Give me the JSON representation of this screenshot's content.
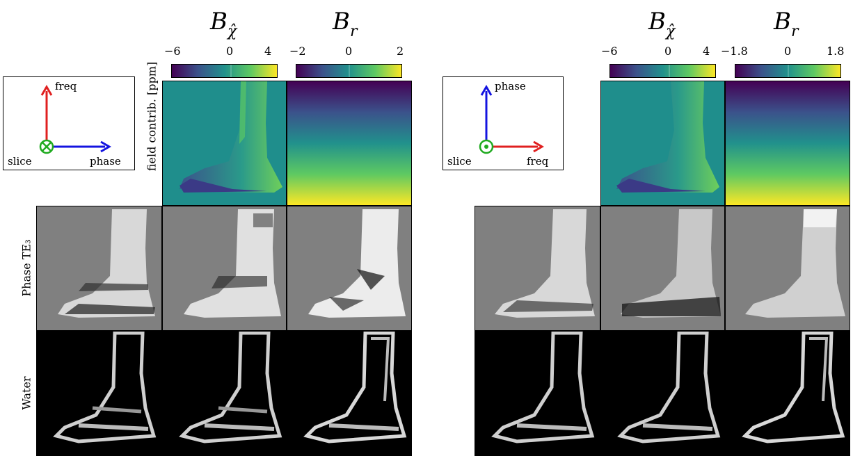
{
  "left": {
    "titles": {
      "chi_main": "B",
      "chi_sub": "χ̂",
      "r_main": "B",
      "r_sub": "r"
    },
    "colorbar_chi": {
      "ticks": [
        "−6",
        "0",
        "4"
      ]
    },
    "colorbar_r": {
      "ticks": [
        "−2",
        "0",
        "2"
      ]
    },
    "axes": {
      "up": "freq",
      "right": "phase",
      "center": "slice"
    }
  },
  "right": {
    "titles": {
      "chi_main": "B",
      "chi_sub": "χ̂",
      "r_main": "B",
      "r_sub": "r"
    },
    "colorbar_chi": {
      "ticks": [
        "−6",
        "0",
        "4"
      ]
    },
    "colorbar_r": {
      "ticks": [
        "−1.8",
        "0",
        "1.8"
      ]
    },
    "axes": {
      "up": "phase",
      "right": "freq",
      "center": "slice"
    }
  },
  "row_labels": {
    "field": "field contrib. [ppm]",
    "phase": "Phase TE₃",
    "water": "Water"
  },
  "colors": {
    "freq_arrow": "#e02020",
    "phase_arrow": "#1414e0",
    "slice_circle": "#1faa1f",
    "phase_bg": "#808080"
  }
}
